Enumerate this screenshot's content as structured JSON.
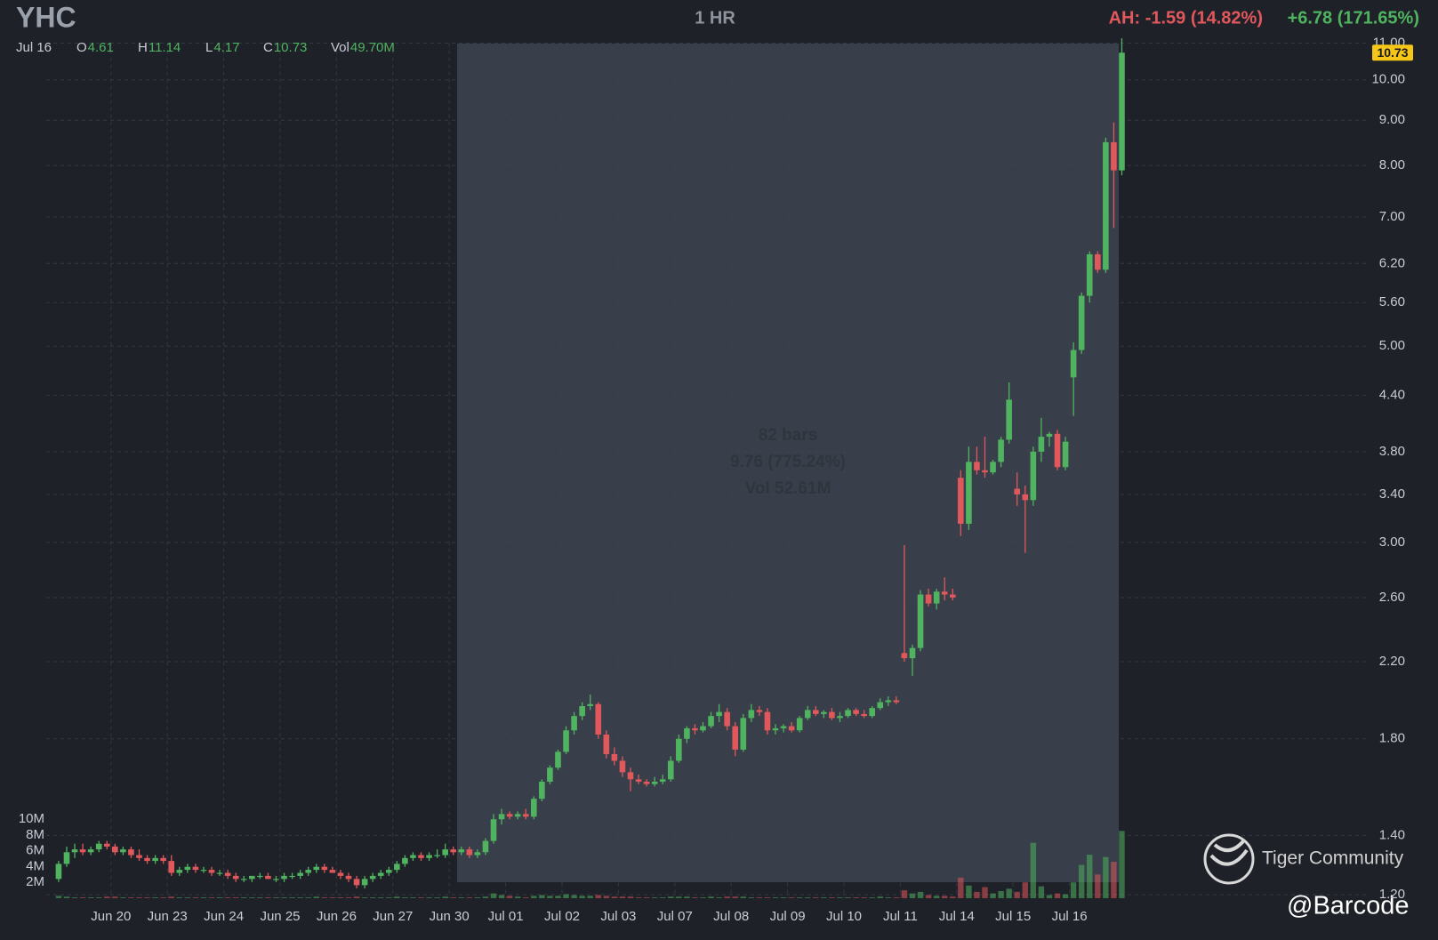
{
  "chart_data": {
    "type": "candlestick",
    "title": "YHC",
    "interval": "1 HR",
    "after_hours": "AH: -1.59 (14.82%)",
    "change": "+6.78 (171.65%)",
    "info": [
      {
        "label": "Jul 16"
      },
      {
        "label": "O",
        "value": "4.61"
      },
      {
        "label": "H",
        "value": "11.14"
      },
      {
        "label": "L",
        "value": "4.17"
      },
      {
        "label": "C",
        "value": "10.73"
      },
      {
        "label": "Vol",
        "value": "49.70M"
      }
    ],
    "measure": [
      "82 bars",
      "9.76 (775.24%)",
      "Vol 52.61M"
    ],
    "watermark": "Tiger Community",
    "credit": "@Barcode",
    "up_color": "#4fb35f",
    "down_color": "#e0585b",
    "log_scale": true,
    "grid": true,
    "ylim": [
      1.2,
      11.0
    ],
    "yticks": [
      {
        "value": 1.2,
        "label": "1.20"
      },
      {
        "value": 1.4,
        "label": "1.40"
      },
      {
        "value": 1.8,
        "label": "1.80"
      },
      {
        "value": 2.2,
        "label": "2.20"
      },
      {
        "value": 2.6,
        "label": "2.60"
      },
      {
        "value": 3.0,
        "label": "3.00"
      },
      {
        "value": 3.4,
        "label": "3.40"
      },
      {
        "value": 3.8,
        "label": "3.80"
      },
      {
        "value": 4.4,
        "label": "4.40"
      },
      {
        "value": 5.0,
        "label": "5.00"
      },
      {
        "value": 5.6,
        "label": "5.60"
      },
      {
        "value": 6.2,
        "label": "6.20"
      },
      {
        "value": 7.0,
        "label": "7.00"
      },
      {
        "value": 8.0,
        "label": "8.00"
      },
      {
        "value": 9.0,
        "label": "9.00"
      },
      {
        "value": 10.0,
        "label": "10.00"
      },
      {
        "value": 11.0,
        "label": "11.00"
      }
    ],
    "vlim": [
      0,
      10
    ],
    "vticks": [
      {
        "value": 2,
        "label": "2M"
      },
      {
        "value": 4,
        "label": "4M"
      },
      {
        "value": 6,
        "label": "6M"
      },
      {
        "value": 8,
        "label": "8M"
      },
      {
        "value": 10,
        "label": "10M"
      }
    ],
    "categories": [
      null,
      null,
      null,
      null,
      null,
      null,
      null,
      "Jun 20",
      null,
      null,
      null,
      null,
      null,
      null,
      "Jun 23",
      null,
      null,
      null,
      null,
      null,
      null,
      "Jun 24",
      null,
      null,
      null,
      null,
      null,
      null,
      "Jun 25",
      null,
      null,
      null,
      null,
      null,
      null,
      "Jun 26",
      null,
      null,
      null,
      null,
      null,
      null,
      "Jun 27",
      null,
      null,
      null,
      null,
      null,
      null,
      "Jun 30",
      null,
      null,
      null,
      null,
      null,
      null,
      "Jul 01",
      null,
      null,
      null,
      null,
      null,
      null,
      "Jul 02",
      null,
      null,
      null,
      null,
      null,
      null,
      "Jul 03",
      null,
      null,
      null,
      null,
      null,
      null,
      "Jul 07",
      null,
      null,
      null,
      null,
      null,
      null,
      "Jul 08",
      null,
      null,
      null,
      null,
      null,
      null,
      "Jul 09",
      null,
      null,
      null,
      null,
      null,
      null,
      "Jul 10",
      null,
      null,
      null,
      null,
      null,
      null,
      "Jul 11",
      null,
      null,
      null,
      null,
      null,
      null,
      "Jul 14",
      null,
      null,
      null,
      null,
      null,
      null,
      "Jul 15",
      null,
      null,
      null,
      null,
      null,
      null,
      "Jul 16",
      null,
      null,
      null,
      null,
      null,
      null
    ],
    "ohlc": [
      [
        1.25,
        1.31,
        1.24,
        1.3
      ],
      [
        1.3,
        1.36,
        1.29,
        1.34
      ],
      [
        1.34,
        1.37,
        1.32,
        1.35
      ],
      [
        1.35,
        1.37,
        1.33,
        1.34
      ],
      [
        1.34,
        1.36,
        1.33,
        1.35
      ],
      [
        1.35,
        1.38,
        1.34,
        1.37
      ],
      [
        1.37,
        1.38,
        1.35,
        1.36
      ],
      [
        1.36,
        1.37,
        1.33,
        1.34
      ],
      [
        1.34,
        1.36,
        1.33,
        1.35
      ],
      [
        1.35,
        1.36,
        1.32,
        1.33
      ],
      [
        1.33,
        1.35,
        1.31,
        1.32
      ],
      [
        1.32,
        1.33,
        1.3,
        1.31
      ],
      [
        1.31,
        1.33,
        1.3,
        1.32
      ],
      [
        1.32,
        1.33,
        1.3,
        1.31
      ],
      [
        1.31,
        1.33,
        1.26,
        1.27
      ],
      [
        1.27,
        1.29,
        1.26,
        1.28
      ],
      [
        1.28,
        1.3,
        1.27,
        1.29
      ],
      [
        1.29,
        1.3,
        1.27,
        1.28
      ],
      [
        1.28,
        1.29,
        1.27,
        1.28
      ],
      [
        1.28,
        1.29,
        1.26,
        1.27
      ],
      [
        1.27,
        1.28,
        1.26,
        1.27
      ],
      [
        1.27,
        1.28,
        1.25,
        1.26
      ],
      [
        1.26,
        1.27,
        1.24,
        1.25
      ],
      [
        1.25,
        1.26,
        1.24,
        1.25
      ],
      [
        1.25,
        1.26,
        1.24,
        1.26
      ],
      [
        1.26,
        1.27,
        1.25,
        1.26
      ],
      [
        1.26,
        1.27,
        1.25,
        1.25
      ],
      [
        1.25,
        1.26,
        1.24,
        1.25
      ],
      [
        1.25,
        1.27,
        1.24,
        1.26
      ],
      [
        1.26,
        1.27,
        1.25,
        1.26
      ],
      [
        1.26,
        1.28,
        1.25,
        1.27
      ],
      [
        1.27,
        1.29,
        1.26,
        1.28
      ],
      [
        1.28,
        1.3,
        1.27,
        1.29
      ],
      [
        1.29,
        1.3,
        1.27,
        1.28
      ],
      [
        1.28,
        1.29,
        1.27,
        1.27
      ],
      [
        1.27,
        1.28,
        1.25,
        1.26
      ],
      [
        1.26,
        1.27,
        1.24,
        1.25
      ],
      [
        1.25,
        1.26,
        1.22,
        1.23
      ],
      [
        1.23,
        1.26,
        1.22,
        1.25
      ],
      [
        1.25,
        1.27,
        1.24,
        1.26
      ],
      [
        1.26,
        1.28,
        1.25,
        1.27
      ],
      [
        1.27,
        1.29,
        1.26,
        1.28
      ],
      [
        1.28,
        1.31,
        1.27,
        1.3
      ],
      [
        1.3,
        1.33,
        1.29,
        1.32
      ],
      [
        1.32,
        1.34,
        1.31,
        1.33
      ],
      [
        1.33,
        1.34,
        1.31,
        1.32
      ],
      [
        1.32,
        1.34,
        1.31,
        1.33
      ],
      [
        1.33,
        1.35,
        1.32,
        1.33
      ],
      [
        1.33,
        1.37,
        1.32,
        1.35
      ],
      [
        1.35,
        1.36,
        1.33,
        1.34
      ],
      [
        1.34,
        1.36,
        1.33,
        1.35
      ],
      [
        1.35,
        1.36,
        1.32,
        1.33
      ],
      [
        1.33,
        1.35,
        1.32,
        1.34
      ],
      [
        1.34,
        1.39,
        1.33,
        1.38
      ],
      [
        1.38,
        1.48,
        1.37,
        1.46
      ],
      [
        1.46,
        1.5,
        1.44,
        1.48
      ],
      [
        1.48,
        1.49,
        1.46,
        1.47
      ],
      [
        1.47,
        1.49,
        1.46,
        1.48
      ],
      [
        1.48,
        1.5,
        1.46,
        1.47
      ],
      [
        1.47,
        1.55,
        1.46,
        1.54
      ],
      [
        1.54,
        1.62,
        1.53,
        1.61
      ],
      [
        1.61,
        1.68,
        1.6,
        1.67
      ],
      [
        1.67,
        1.75,
        1.66,
        1.74
      ],
      [
        1.74,
        1.86,
        1.73,
        1.84
      ],
      [
        1.84,
        1.93,
        1.82,
        1.91
      ],
      [
        1.91,
        1.98,
        1.89,
        1.96
      ],
      [
        1.96,
        2.02,
        1.94,
        1.97
      ],
      [
        1.97,
        1.98,
        1.8,
        1.82
      ],
      [
        1.82,
        1.84,
        1.71,
        1.73
      ],
      [
        1.73,
        1.76,
        1.68,
        1.7
      ],
      [
        1.7,
        1.72,
        1.63,
        1.65
      ],
      [
        1.65,
        1.67,
        1.57,
        1.62
      ],
      [
        1.62,
        1.64,
        1.6,
        1.61
      ],
      [
        1.61,
        1.62,
        1.59,
        1.6
      ],
      [
        1.6,
        1.63,
        1.59,
        1.61
      ],
      [
        1.61,
        1.64,
        1.6,
        1.62
      ],
      [
        1.62,
        1.72,
        1.61,
        1.7
      ],
      [
        1.7,
        1.82,
        1.69,
        1.8
      ],
      [
        1.8,
        1.86,
        1.78,
        1.85
      ],
      [
        1.85,
        1.87,
        1.82,
        1.84
      ],
      [
        1.84,
        1.88,
        1.83,
        1.86
      ],
      [
        1.86,
        1.93,
        1.85,
        1.91
      ],
      [
        1.91,
        1.97,
        1.88,
        1.93
      ],
      [
        1.93,
        1.95,
        1.84,
        1.86
      ],
      [
        1.86,
        1.88,
        1.72,
        1.75
      ],
      [
        1.75,
        1.92,
        1.74,
        1.9
      ],
      [
        1.9,
        1.97,
        1.88,
        1.94
      ],
      [
        1.94,
        1.96,
        1.91,
        1.93
      ],
      [
        1.93,
        1.95,
        1.82,
        1.84
      ],
      [
        1.84,
        1.87,
        1.82,
        1.85
      ],
      [
        1.85,
        1.87,
        1.83,
        1.86
      ],
      [
        1.86,
        1.88,
        1.83,
        1.84
      ],
      [
        1.84,
        1.91,
        1.83,
        1.9
      ],
      [
        1.9,
        1.96,
        1.89,
        1.94
      ],
      [
        1.94,
        1.96,
        1.91,
        1.92
      ],
      [
        1.92,
        1.94,
        1.9,
        1.93
      ],
      [
        1.93,
        1.95,
        1.89,
        1.9
      ],
      [
        1.9,
        1.93,
        1.88,
        1.91
      ],
      [
        1.91,
        1.95,
        1.9,
        1.94
      ],
      [
        1.94,
        1.95,
        1.91,
        1.92
      ],
      [
        1.92,
        1.94,
        1.9,
        1.91
      ],
      [
        1.91,
        1.96,
        1.9,
        1.95
      ],
      [
        1.95,
        2.0,
        1.94,
        1.98
      ],
      [
        1.98,
        2.01,
        1.96,
        1.99
      ],
      [
        1.99,
        2.01,
        1.97,
        1.98
      ],
      [
        2.25,
        2.98,
        2.2,
        2.22
      ],
      [
        2.22,
        2.3,
        2.12,
        2.28
      ],
      [
        2.28,
        2.65,
        2.26,
        2.62
      ],
      [
        2.62,
        2.66,
        2.54,
        2.56
      ],
      [
        2.56,
        2.66,
        2.52,
        2.64
      ],
      [
        2.64,
        2.74,
        2.58,
        2.62
      ],
      [
        2.62,
        2.66,
        2.58,
        2.6
      ],
      [
        3.55,
        3.62,
        3.05,
        3.15
      ],
      [
        3.15,
        3.85,
        3.1,
        3.7
      ],
      [
        3.7,
        3.85,
        3.58,
        3.62
      ],
      [
        3.62,
        3.95,
        3.55,
        3.6
      ],
      [
        3.6,
        3.72,
        3.58,
        3.7
      ],
      [
        3.7,
        3.95,
        3.65,
        3.92
      ],
      [
        3.92,
        4.55,
        3.88,
        4.35
      ],
      [
        3.45,
        3.6,
        3.3,
        3.4
      ],
      [
        3.4,
        3.48,
        2.92,
        3.35
      ],
      [
        3.35,
        3.85,
        3.3,
        3.8
      ],
      [
        3.8,
        4.15,
        3.7,
        3.95
      ],
      [
        3.95,
        4.0,
        3.85,
        3.98
      ],
      [
        3.98,
        4.02,
        3.62,
        3.65
      ],
      [
        3.65,
        3.95,
        3.62,
        3.9
      ],
      [
        4.61,
        5.05,
        4.17,
        4.95
      ],
      [
        4.95,
        5.75,
        4.9,
        5.7
      ],
      [
        5.7,
        6.4,
        5.6,
        6.35
      ],
      [
        6.35,
        6.4,
        6.05,
        6.1
      ],
      [
        6.1,
        8.6,
        6.05,
        8.5
      ],
      [
        8.5,
        8.95,
        6.8,
        7.9
      ],
      [
        7.9,
        11.14,
        7.8,
        10.73
      ]
    ],
    "volume": [
      0.3,
      0.2,
      0.1,
      0.1,
      0.1,
      0.1,
      0.2,
      0.2,
      0.1,
      0.1,
      0.1,
      0.1,
      0.1,
      0.1,
      0.2,
      0.1,
      0.1,
      0.1,
      0.1,
      0.1,
      0.1,
      0.1,
      0.1,
      0.1,
      0.1,
      0.1,
      0.1,
      0.1,
      0.1,
      0.1,
      0.1,
      0.1,
      0.2,
      0.1,
      0.1,
      0.1,
      0.1,
      0.2,
      0.1,
      0.1,
      0.1,
      0.1,
      0.2,
      0.1,
      0.1,
      0.1,
      0.1,
      0.1,
      0.2,
      0.1,
      0.1,
      0.1,
      0.1,
      0.2,
      0.6,
      0.4,
      0.3,
      0.2,
      0.1,
      0.3,
      0.4,
      0.3,
      0.3,
      0.5,
      0.4,
      0.3,
      0.3,
      0.4,
      0.3,
      0.2,
      0.2,
      0.2,
      0.1,
      0.1,
      0.1,
      0.1,
      0.2,
      0.2,
      0.2,
      0.1,
      0.1,
      0.2,
      0.1,
      0.2,
      0.2,
      0.2,
      0.1,
      0.1,
      0.1,
      0.1,
      0.1,
      0.1,
      0.1,
      0.1,
      0.1,
      0.1,
      0.1,
      0.1,
      0.1,
      0.1,
      0.1,
      0.1,
      0.2,
      0.1,
      0.1,
      1.0,
      0.6,
      0.8,
      0.4,
      0.3,
      0.3,
      0.2,
      2.6,
      1.6,
      0.8,
      1.4,
      0.6,
      0.9,
      1.2,
      0.8,
      2.0,
      7.0,
      1.5,
      0.4,
      0.6,
      0.5,
      2.0,
      4.2,
      5.5,
      3.0,
      5.2,
      4.6,
      8.5
    ]
  }
}
